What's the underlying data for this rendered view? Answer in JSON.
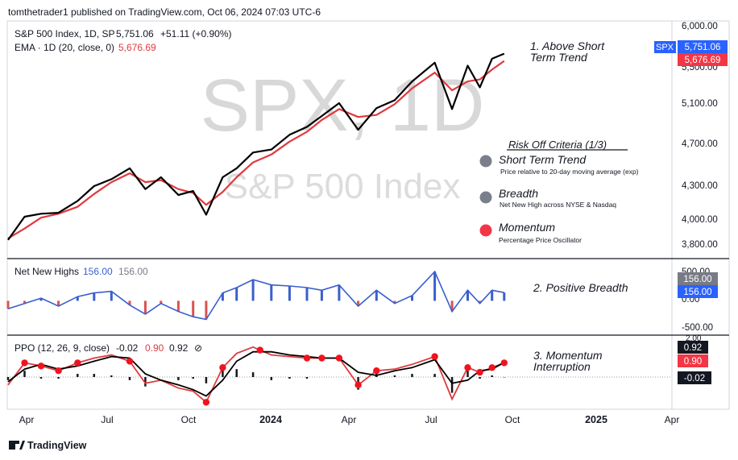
{
  "header": {
    "published": "tomthetrader1 published on TradingView.com, Oct 06, 2024 07:03 UTC-6"
  },
  "legend": {
    "symbol": "S&P 500 Index, 1D, SP",
    "price": "5,751.06",
    "change": "+51.11 (+0.90%)",
    "ema_label": "EMA · 1D (20, close, 0)",
    "ema_value": "5,676.69"
  },
  "watermark": {
    "ticker": "SPX, 1D",
    "name": "S&P 500 Index"
  },
  "annotations": {
    "a1_line1": "1. Above Short",
    "a1_line2": "Term Trend",
    "a2": "2. Positive Breadth",
    "a3_line1": "3. Momentum",
    "a3_line2": "Interruption"
  },
  "criteria": {
    "title": "Risk Off Criteria (1/3)",
    "items": [
      {
        "name": "Short Term Trend",
        "desc": "Price relative to 20-day moving average (exp)",
        "color": "#7a7f8c"
      },
      {
        "name": "Breadth",
        "desc": "Net New High across NYSE & Nasdaq",
        "color": "#7a7f8c"
      },
      {
        "name": "Momentum",
        "desc": "Percentage Price Oscillator",
        "color": "#f23645"
      }
    ]
  },
  "price_axis": {
    "ticks": [
      "6,000.00",
      "5,100.00",
      "4,700.00",
      "4,300.00",
      "4,000.00",
      "3,800.00"
    ],
    "partial_tick": "5,500.00",
    "badge_symbol": "SPX",
    "badge_price": "5,751.06",
    "badge_ema": "5,676.69"
  },
  "nnh_pane": {
    "label": "Net New Highs",
    "value_1": "156.00",
    "value_2": "156.00",
    "ticks": [
      "500.00",
      "0.00",
      "-500.00"
    ],
    "badge_1": "156.00",
    "badge_2": "156.00"
  },
  "ppo_pane": {
    "label": "PPO (12, 26, 9, close)",
    "hist_value": "-0.02",
    "ppo_value": "0.90",
    "signal_value": "0.92",
    "eye_icon": "⊘",
    "top_tick": "2.00",
    "badge_signal": "0.92",
    "badge_ppo": "0.90",
    "badge_hist": "-0.02"
  },
  "time_axis": {
    "labels": [
      "Apr",
      "Jul",
      "Oct",
      "2024",
      "Apr",
      "Jul",
      "Oct",
      "2025",
      "Apr"
    ]
  },
  "footer": {
    "brand": "TradingView"
  },
  "colors": {
    "price": "#000000",
    "ema": "#e03a3e",
    "nnh_positive": "#3a5fcd",
    "nnh_negative": "#d9534f",
    "ppo": "#e03a3e",
    "signal": "#000000",
    "dot": "#f0131e",
    "badge_blue": "#2962ff",
    "badge_red": "#f23645",
    "badge_gray": "#787b86"
  },
  "chart_data": {
    "type": "line",
    "x_range": [
      "2023-03-13",
      "2025-04-15"
    ],
    "price": {
      "ylim": [
        3700,
        6050
      ],
      "x": [
        "2023-03-13",
        "2023-04-01",
        "2023-04-20",
        "2023-05-10",
        "2023-06-01",
        "2023-06-20",
        "2023-07-10",
        "2023-07-31",
        "2023-08-18",
        "2023-09-05",
        "2023-09-25",
        "2023-10-12",
        "2023-10-27",
        "2023-11-15",
        "2023-12-01",
        "2023-12-20",
        "2024-01-10",
        "2024-01-31",
        "2024-02-20",
        "2024-03-08",
        "2024-03-28",
        "2024-04-19",
        "2024-05-10",
        "2024-05-31",
        "2024-06-20",
        "2024-07-16",
        "2024-08-05",
        "2024-08-23",
        "2024-09-06",
        "2024-09-20",
        "2024-10-04"
      ],
      "close": [
        3865,
        4100,
        4130,
        4140,
        4260,
        4410,
        4480,
        4590,
        4380,
        4500,
        4320,
        4360,
        4120,
        4500,
        4590,
        4750,
        4780,
        4930,
        5010,
        5120,
        5250,
        4980,
        5200,
        5280,
        5470,
        5660,
        5190,
        5630,
        5410,
        5700,
        5751
      ],
      "ema": [
        3880,
        3980,
        4090,
        4130,
        4200,
        4330,
        4450,
        4540,
        4450,
        4470,
        4380,
        4340,
        4220,
        4350,
        4500,
        4650,
        4730,
        4860,
        4960,
        5080,
        5190,
        5110,
        5130,
        5240,
        5400,
        5560,
        5380,
        5470,
        5490,
        5590,
        5677
      ]
    },
    "net_new_highs": {
      "ylim": [
        -600,
        750
      ],
      "ticks": [
        500,
        0,
        -500
      ],
      "x": [
        "2023-03-13",
        "2023-04-01",
        "2023-04-20",
        "2023-05-10",
        "2023-06-01",
        "2023-06-20",
        "2023-07-10",
        "2023-07-31",
        "2023-08-18",
        "2023-09-05",
        "2023-09-25",
        "2023-10-12",
        "2023-10-27",
        "2023-11-15",
        "2023-12-01",
        "2023-12-20",
        "2024-01-10",
        "2024-01-31",
        "2024-02-20",
        "2024-03-08",
        "2024-03-28",
        "2024-04-19",
        "2024-05-10",
        "2024-05-31",
        "2024-06-20",
        "2024-07-16",
        "2024-08-05",
        "2024-08-23",
        "2024-09-06",
        "2024-09-20",
        "2024-10-04"
      ],
      "values": [
        -150,
        -50,
        50,
        -100,
        80,
        150,
        180,
        -80,
        -250,
        -50,
        -200,
        -300,
        -350,
        150,
        250,
        400,
        300,
        280,
        250,
        200,
        300,
        -100,
        200,
        -50,
        100,
        550,
        -200,
        200,
        -50,
        200,
        156
      ]
    },
    "ppo": {
      "ylim": [
        -2.2,
        2.3
      ],
      "x": [
        "2023-03-13",
        "2023-04-01",
        "2023-04-20",
        "2023-05-10",
        "2023-06-01",
        "2023-06-20",
        "2023-07-10",
        "2023-07-31",
        "2023-08-18",
        "2023-09-05",
        "2023-09-25",
        "2023-10-12",
        "2023-10-27",
        "2023-11-15",
        "2023-12-01",
        "2023-12-20",
        "2024-01-10",
        "2024-01-31",
        "2024-02-20",
        "2024-03-08",
        "2024-03-28",
        "2024-04-19",
        "2024-05-10",
        "2024-05-31",
        "2024-06-20",
        "2024-07-16",
        "2024-08-05",
        "2024-08-23",
        "2024-09-06",
        "2024-09-20",
        "2024-10-04"
      ],
      "ppo": [
        -0.5,
        0.9,
        0.7,
        0.4,
        0.9,
        1.2,
        1.4,
        1.0,
        -0.4,
        -0.2,
        -0.7,
        -0.9,
        -1.6,
        0.6,
        1.5,
        1.9,
        1.4,
        1.3,
        1.2,
        1.2,
        1.2,
        -0.5,
        0.4,
        0.5,
        0.8,
        1.3,
        -1.4,
        0.6,
        0.3,
        0.6,
        0.9
      ],
      "signal": [
        -0.3,
        0.5,
        0.8,
        0.5,
        0.7,
        1.0,
        1.3,
        1.2,
        0.2,
        -0.2,
        -0.5,
        -0.8,
        -1.2,
        -0.2,
        1.0,
        1.6,
        1.6,
        1.4,
        1.3,
        1.2,
        1.2,
        0.3,
        0.1,
        0.4,
        0.6,
        1.1,
        -0.4,
        -0.2,
        0.4,
        0.5,
        0.92
      ],
      "histogram": [
        -0.2,
        0.4,
        -0.1,
        -0.1,
        0.2,
        0.2,
        0.1,
        -0.2,
        -0.6,
        0.0,
        -0.2,
        -0.1,
        -0.4,
        0.8,
        0.5,
        0.3,
        -0.2,
        -0.1,
        -0.1,
        0.0,
        0.0,
        -0.8,
        0.3,
        0.1,
        0.2,
        0.2,
        -1.0,
        0.8,
        -0.1,
        0.1,
        -0.02
      ],
      "crossover_dates": [
        "2023-04-01",
        "2023-04-20",
        "2023-05-10",
        "2023-06-01",
        "2023-07-31",
        "2023-10-27",
        "2023-11-15",
        "2023-12-28",
        "2024-02-20",
        "2024-03-08",
        "2024-03-28",
        "2024-04-19",
        "2024-05-10",
        "2024-07-16",
        "2024-08-23",
        "2024-09-06",
        "2024-09-20",
        "2024-10-04"
      ]
    }
  }
}
